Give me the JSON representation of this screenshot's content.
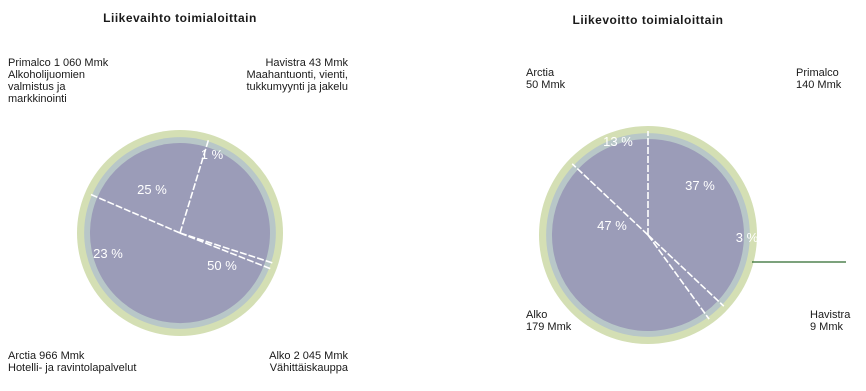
{
  "chart_data": [
    {
      "type": "pie",
      "title": "Liikevaihto toimialoittain",
      "colors": {
        "slice": "#9b9cb8",
        "halo_outer": "#d4dfb4",
        "halo_inner": "#b8c7c8",
        "divider": "#ffffff"
      },
      "slices": [
        {
          "key": "primalco",
          "value": 25,
          "pct_label": "25 %",
          "lines": [
            "Primalco 1 060 Mmk",
            "Alkoholijuomien",
            "valmistus ja",
            "markkinointi"
          ]
        },
        {
          "key": "havistra",
          "value": 1,
          "pct_label": "1 %",
          "lines": [
            "Havistra 43 Mmk",
            "Maahantuonti, vienti,",
            "tukkumyynti ja jakelu"
          ]
        },
        {
          "key": "alko",
          "value": 50,
          "pct_label": "50 %",
          "lines": [
            "Alko 2 045 Mmk",
            "Vähittäiskauppa"
          ]
        },
        {
          "key": "arctia",
          "value": 23,
          "pct_label": "23 %",
          "lines": [
            "Arctia 966 Mmk",
            "Hotelli- ja ravintolapalvelut"
          ]
        }
      ]
    },
    {
      "type": "pie",
      "title": "Liikevoitto toimialoittain",
      "colors": {
        "slice": "#9b9cb8",
        "halo_outer": "#d4dfb4",
        "halo_inner": "#b8c7c8",
        "divider": "#ffffff",
        "leader": "#2e6b2e"
      },
      "slices": [
        {
          "key": "primalco",
          "value": 37,
          "pct_label": "37 %",
          "lines": [
            "Primalco",
            "140 Mmk"
          ]
        },
        {
          "key": "havistra",
          "value": 3,
          "pct_label": "3 %",
          "lines": [
            "Havistra",
            "9 Mmk"
          ]
        },
        {
          "key": "alko",
          "value": 47,
          "pct_label": "47 %",
          "lines": [
            "Alko",
            "179 Mmk"
          ]
        },
        {
          "key": "arctia",
          "value": 13,
          "pct_label": "13 %",
          "lines": [
            "Arctia",
            "50 Mmk"
          ]
        }
      ]
    }
  ]
}
